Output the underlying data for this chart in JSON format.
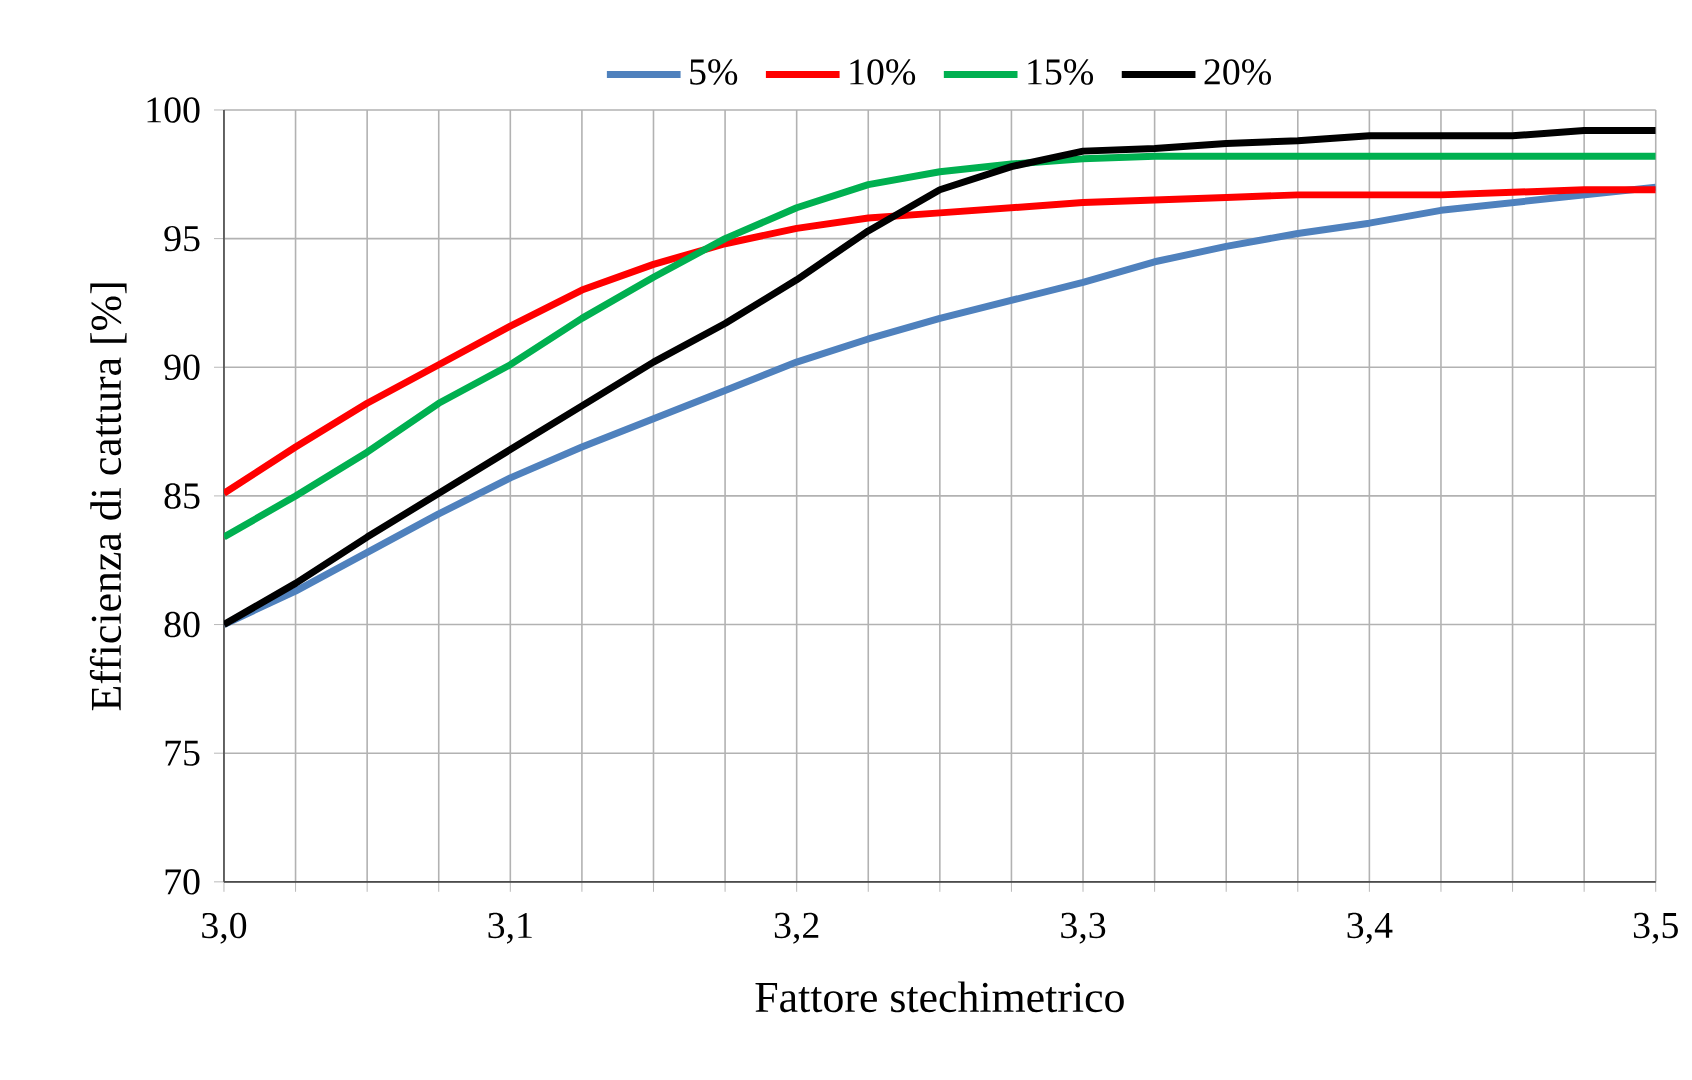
{
  "chart_data": {
    "type": "line",
    "xlabel": "Fattore stechimetrico",
    "ylabel": "Efficienza di cattura  [%]",
    "x": [
      3.0,
      3.025,
      3.05,
      3.075,
      3.1,
      3.125,
      3.15,
      3.175,
      3.2,
      3.225,
      3.25,
      3.275,
      3.3,
      3.325,
      3.35,
      3.375,
      3.4,
      3.425,
      3.45,
      3.475,
      3.5
    ],
    "series": [
      {
        "name": "5%",
        "color": "#4f81bd",
        "values": [
          80.0,
          81.3,
          82.8,
          84.3,
          85.7,
          86.9,
          88.0,
          89.1,
          90.2,
          91.1,
          91.9,
          92.6,
          93.3,
          94.1,
          94.7,
          95.2,
          95.6,
          96.1,
          96.4,
          96.7,
          97.0
        ]
      },
      {
        "name": "10%",
        "color": "#ff0000",
        "values": [
          85.1,
          86.9,
          88.6,
          90.1,
          91.6,
          93.0,
          94.0,
          94.8,
          95.4,
          95.8,
          96.0,
          96.2,
          96.4,
          96.5,
          96.6,
          96.7,
          96.7,
          96.7,
          96.8,
          96.9,
          96.9
        ]
      },
      {
        "name": "15%",
        "color": "#00b050",
        "values": [
          83.4,
          85.0,
          86.7,
          88.6,
          90.1,
          91.9,
          93.5,
          95.0,
          96.2,
          97.1,
          97.6,
          97.9,
          98.1,
          98.2,
          98.2,
          98.2,
          98.2,
          98.2,
          98.2,
          98.2,
          98.2
        ]
      },
      {
        "name": "20%",
        "color": "#000000",
        "values": [
          80.0,
          81.6,
          83.4,
          85.1,
          86.8,
          88.5,
          90.2,
          91.7,
          93.4,
          95.3,
          96.9,
          97.8,
          98.4,
          98.5,
          98.7,
          98.8,
          99.0,
          99.0,
          99.0,
          99.2,
          99.2
        ]
      }
    ],
    "xlim": [
      3.0,
      3.5
    ],
    "xticks": [
      {
        "value": 3.0,
        "label": "3,0"
      },
      {
        "value": 3.025,
        "label": null
      },
      {
        "value": 3.05,
        "label": null
      },
      {
        "value": 3.075,
        "label": null
      },
      {
        "value": 3.1,
        "label": "3,1"
      },
      {
        "value": 3.125,
        "label": null
      },
      {
        "value": 3.15,
        "label": null
      },
      {
        "value": 3.175,
        "label": null
      },
      {
        "value": 3.2,
        "label": "3,2"
      },
      {
        "value": 3.225,
        "label": null
      },
      {
        "value": 3.25,
        "label": null
      },
      {
        "value": 3.275,
        "label": null
      },
      {
        "value": 3.3,
        "label": "3,3"
      },
      {
        "value": 3.325,
        "label": null
      },
      {
        "value": 3.35,
        "label": null
      },
      {
        "value": 3.375,
        "label": null
      },
      {
        "value": 3.4,
        "label": "3,4"
      },
      {
        "value": 3.425,
        "label": null
      },
      {
        "value": 3.45,
        "label": null
      },
      {
        "value": 3.475,
        "label": null
      },
      {
        "value": 3.5,
        "label": "3,5"
      }
    ],
    "ylim": [
      70,
      100
    ],
    "yticks": [
      70,
      75,
      80,
      85,
      90,
      95,
      100
    ],
    "grid": true,
    "legend": "top",
    "marker": "none",
    "line_style": "solid"
  }
}
